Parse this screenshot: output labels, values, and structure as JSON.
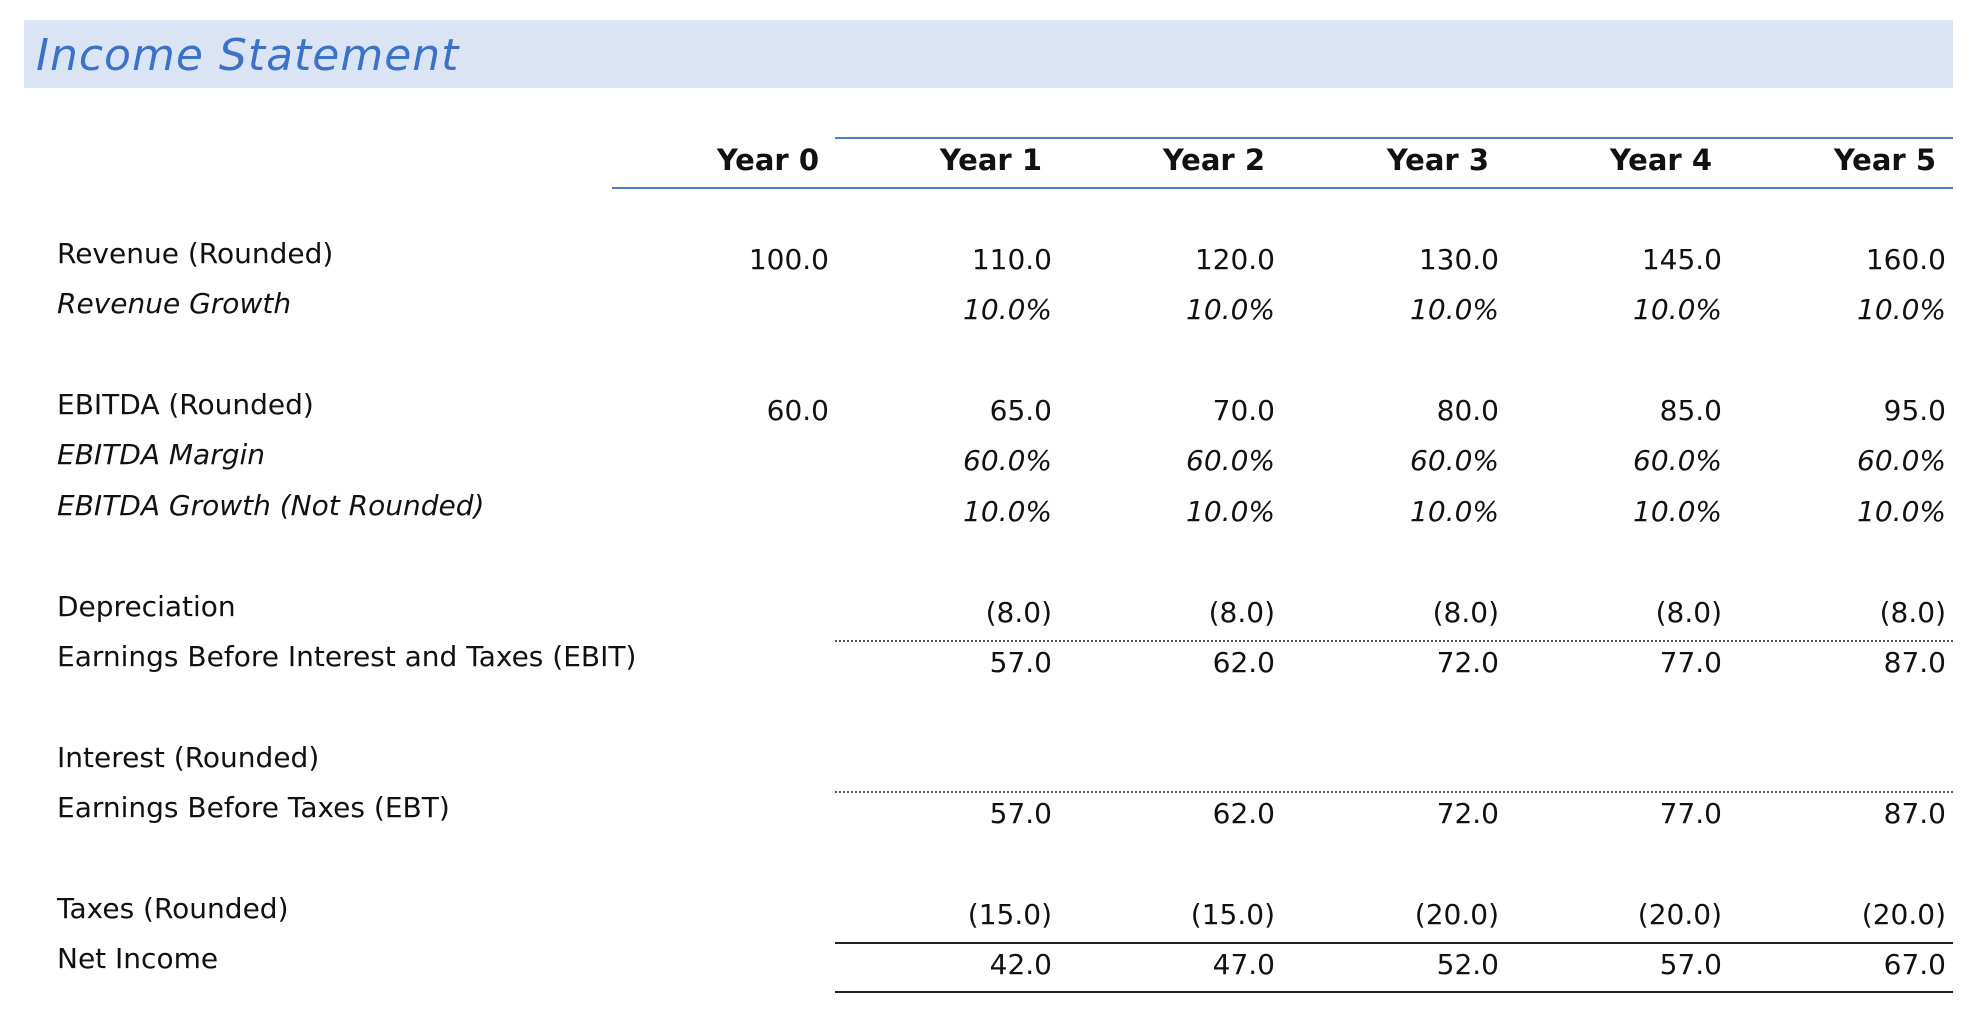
{
  "title": "Income Statement",
  "table": {
    "columns": [
      "Year 0",
      "Year 1",
      "Year 2",
      "Year 3",
      "Year 4",
      "Year 5"
    ],
    "rows": [
      {
        "label": "Revenue (Rounded)",
        "values": [
          "100.0",
          "110.0",
          "120.0",
          "130.0",
          "145.0",
          "160.0"
        ]
      },
      {
        "label": "Revenue Growth",
        "values": [
          null,
          "10.0%",
          "10.0%",
          "10.0%",
          "10.0%",
          "10.0%"
        ]
      },
      {
        "label": "EBITDA (Rounded)",
        "values": [
          "60.0",
          "65.0",
          "70.0",
          "80.0",
          "85.0",
          "95.0"
        ]
      },
      {
        "label": "EBITDA Margin",
        "values": [
          null,
          "60.0%",
          "60.0%",
          "60.0%",
          "60.0%",
          "60.0%"
        ]
      },
      {
        "label": "EBITDA Growth (Not Rounded)",
        "values": [
          null,
          "10.0%",
          "10.0%",
          "10.0%",
          "10.0%",
          "10.0%"
        ]
      },
      {
        "label": "Depreciation",
        "values": [
          null,
          "(8.0)",
          "(8.0)",
          "(8.0)",
          "(8.0)",
          "(8.0)"
        ]
      },
      {
        "label": "Earnings Before Interest and Taxes (EBIT)",
        "values": [
          null,
          "57.0",
          "62.0",
          "72.0",
          "77.0",
          "87.0"
        ]
      },
      {
        "label": "Interest (Rounded)",
        "values": [
          null,
          null,
          null,
          null,
          null,
          null
        ]
      },
      {
        "label": "Earnings Before Taxes (EBT)",
        "values": [
          null,
          "57.0",
          "62.0",
          "72.0",
          "77.0",
          "87.0"
        ]
      },
      {
        "label": "Taxes (Rounded)",
        "values": [
          null,
          "(15.0)",
          "(15.0)",
          "(20.0)",
          "(20.0)",
          "(20.0)"
        ]
      },
      {
        "label": "Net Income",
        "values": [
          null,
          "42.0",
          "47.0",
          "52.0",
          "57.0",
          "67.0"
        ]
      }
    ]
  }
}
